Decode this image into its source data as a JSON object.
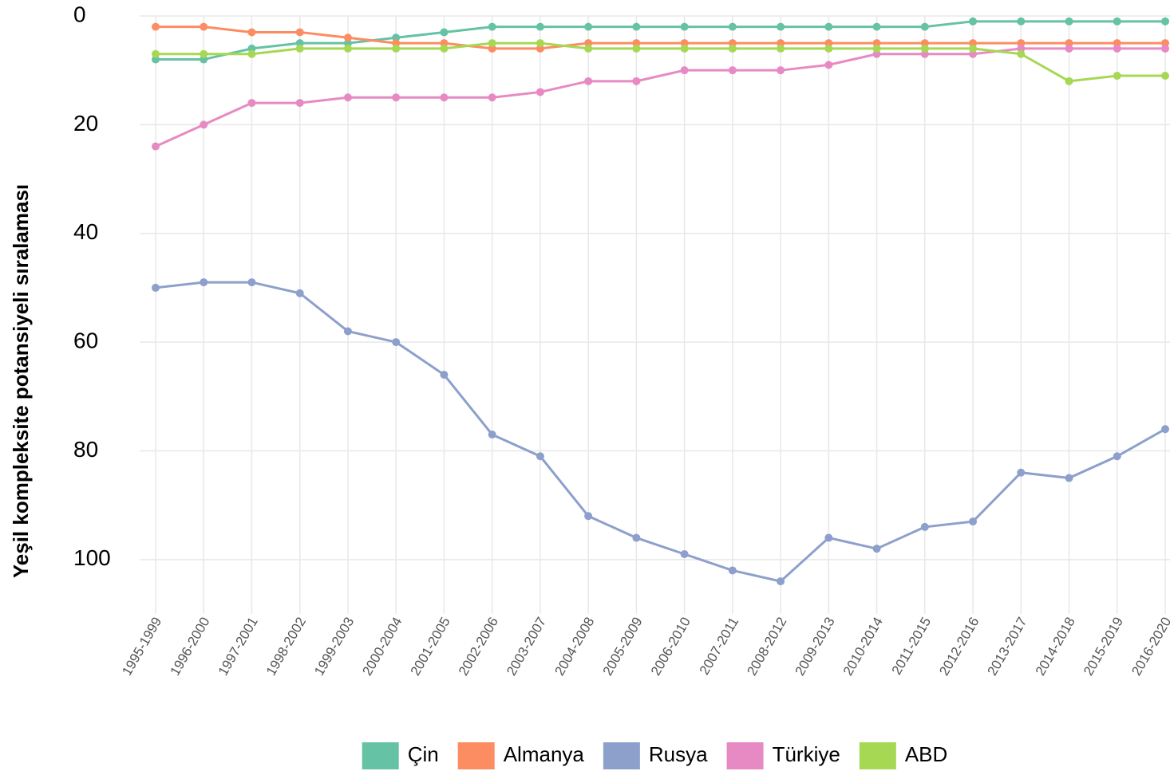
{
  "chart_data": {
    "type": "line",
    "y_label": "Yeşil kompleksite potansiyeli sıralaması",
    "categories": [
      "1995-1999",
      "1996-2000",
      "1997-2001",
      "1998-2002",
      "1999-2003",
      "2000-2004",
      "2001-2005",
      "2002-2006",
      "2003-2007",
      "2004-2008",
      "2005-2009",
      "2006-2010",
      "2007-2011",
      "2008-2012",
      "2009-2013",
      "2010-2014",
      "2011-2015",
      "2012-2016",
      "2013-2017",
      "2014-2018",
      "2015-2019",
      "2016-2020"
    ],
    "series": [
      {
        "name": "Çin",
        "color": "#66c2a5",
        "values": [
          8,
          8,
          6,
          5,
          5,
          4,
          3,
          2,
          2,
          2,
          2,
          2,
          2,
          2,
          2,
          2,
          2,
          1,
          1,
          1,
          1,
          1
        ]
      },
      {
        "name": "Almanya",
        "color": "#fc8d62",
        "values": [
          2,
          2,
          3,
          3,
          4,
          5,
          5,
          6,
          6,
          5,
          5,
          5,
          5,
          5,
          5,
          5,
          5,
          5,
          5,
          5,
          5,
          5
        ]
      },
      {
        "name": "Rusya",
        "color": "#8da0cb",
        "values": [
          50,
          49,
          49,
          51,
          58,
          60,
          66,
          77,
          81,
          92,
          96,
          99,
          102,
          104,
          96,
          98,
          94,
          93,
          84,
          85,
          81,
          76
        ]
      },
      {
        "name": "Türkiye",
        "color": "#e78ac3",
        "values": [
          24,
          20,
          16,
          16,
          15,
          15,
          15,
          15,
          14,
          12,
          12,
          10,
          10,
          10,
          9,
          7,
          7,
          7,
          6,
          6,
          6,
          6
        ]
      },
      {
        "name": "ABD",
        "color": "#a6d854",
        "values": [
          7,
          7,
          7,
          6,
          6,
          6,
          6,
          5,
          5,
          6,
          6,
          6,
          6,
          6,
          6,
          6,
          6,
          6,
          7,
          12,
          11,
          11
        ]
      }
    ],
    "ylim": [
      0,
      110
    ],
    "yticks": [
      0,
      20,
      40,
      60,
      80,
      100
    ],
    "y_inverted": true,
    "grid": true,
    "legend": "bottom"
  }
}
